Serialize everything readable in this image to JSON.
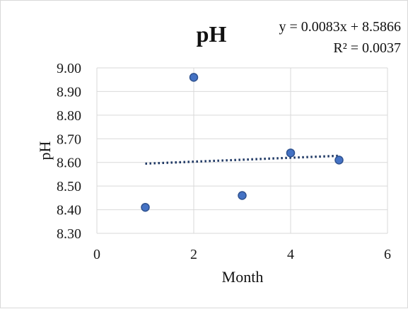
{
  "chart_data": {
    "type": "scatter",
    "title": "pH",
    "xlabel": "Month",
    "ylabel": "pH",
    "xlim": [
      0,
      6
    ],
    "ylim": [
      8.3,
      9.0
    ],
    "x_ticks": [
      "0",
      "2",
      "4",
      "6"
    ],
    "y_ticks": [
      "8.30",
      "8.40",
      "8.50",
      "8.60",
      "8.70",
      "8.80",
      "8.90",
      "9.00"
    ],
    "grid": true,
    "series": [
      {
        "x": [
          1,
          2,
          3,
          4,
          5
        ],
        "y": [
          8.41,
          8.96,
          8.46,
          8.64,
          8.61
        ],
        "color": "#4472c4",
        "edge_color": "#2f528f"
      }
    ],
    "trendline": {
      "type": "linear",
      "slope": 0.0083,
      "intercept": 8.5866,
      "x_range": [
        1,
        5
      ],
      "color": "#1f3864",
      "style": "dotted",
      "equation": "y = 0.0083x + 8.5866",
      "r_squared": "R² = 0.0037"
    }
  }
}
